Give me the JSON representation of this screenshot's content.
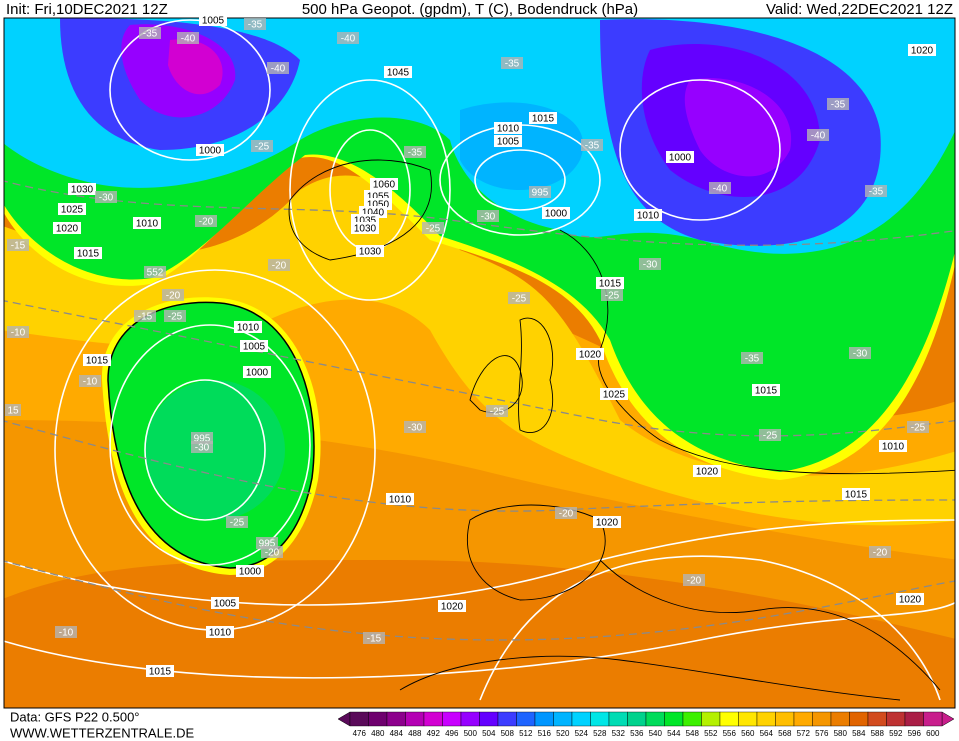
{
  "header": {
    "init": "Init: Fri,10DEC2021 12Z",
    "title": "500 hPa Geopot. (gpdm), T (C), Bodendruck (hPa)",
    "valid": "Valid: Wed,22DEC2021 12Z"
  },
  "footer": {
    "data_source": "Data: GFS P22 0.500°",
    "website": "WWW.WETTERZENTRALE.DE"
  },
  "colorbar": {
    "values": [
      476,
      480,
      484,
      488,
      492,
      496,
      500,
      504,
      508,
      512,
      516,
      520,
      524,
      528,
      532,
      536,
      540,
      544,
      548,
      552,
      556,
      560,
      564,
      568,
      572,
      576,
      580,
      584,
      588,
      592,
      596,
      600
    ],
    "colors": [
      "#5a0a5a",
      "#6e006e",
      "#8c008c",
      "#b400b4",
      "#d200d2",
      "#c800ff",
      "#9600ff",
      "#6400ff",
      "#3c3cff",
      "#1e64ff",
      "#0096ff",
      "#00b4ff",
      "#00d2ff",
      "#00e6e6",
      "#00dcb4",
      "#00d28c",
      "#00dc5a",
      "#00e628",
      "#3cf000",
      "#b4f000",
      "#ffff00",
      "#ffe600",
      "#ffd200",
      "#ffbe00",
      "#ffaa00",
      "#f59600",
      "#eb7d00",
      "#e16400",
      "#d24b1e",
      "#be3232",
      "#aa1e46",
      "#c81e8c"
    ]
  },
  "map_labels": [
    "1005",
    "-35",
    "-35",
    "-40",
    "-40",
    "1020",
    "-35",
    "1045",
    "-40",
    "-35",
    "1010",
    "1015",
    "1005",
    "-40",
    "-25",
    "-35",
    "-35",
    "1000",
    "1000",
    "1060",
    "-40",
    "995",
    "-35",
    "1030",
    "-30",
    "1055",
    "1050",
    "1025",
    "1040",
    "-30",
    "1000",
    "1010",
    "-20",
    "1010",
    "1020",
    "1035",
    "1030",
    "-25",
    "-15",
    "1030",
    "1015",
    "-20",
    "-30",
    "552",
    "1015",
    "-20",
    "-25",
    "-25",
    "-15",
    "-25",
    "1010",
    "-10",
    "1005",
    "1020",
    "1015",
    "-35",
    "-30",
    "1000",
    "-10",
    "1015",
    "1025",
    "15",
    "-25",
    "-30",
    "-25",
    "-25",
    "995",
    "-30",
    "1010",
    "1020",
    "1015",
    "1010",
    "-20",
    "-25",
    "1020",
    "995",
    "-20",
    "-20",
    "1000",
    "-20",
    "1005",
    "1020",
    "1020",
    "-10",
    "1010",
    "-15",
    "1015"
  ]
}
